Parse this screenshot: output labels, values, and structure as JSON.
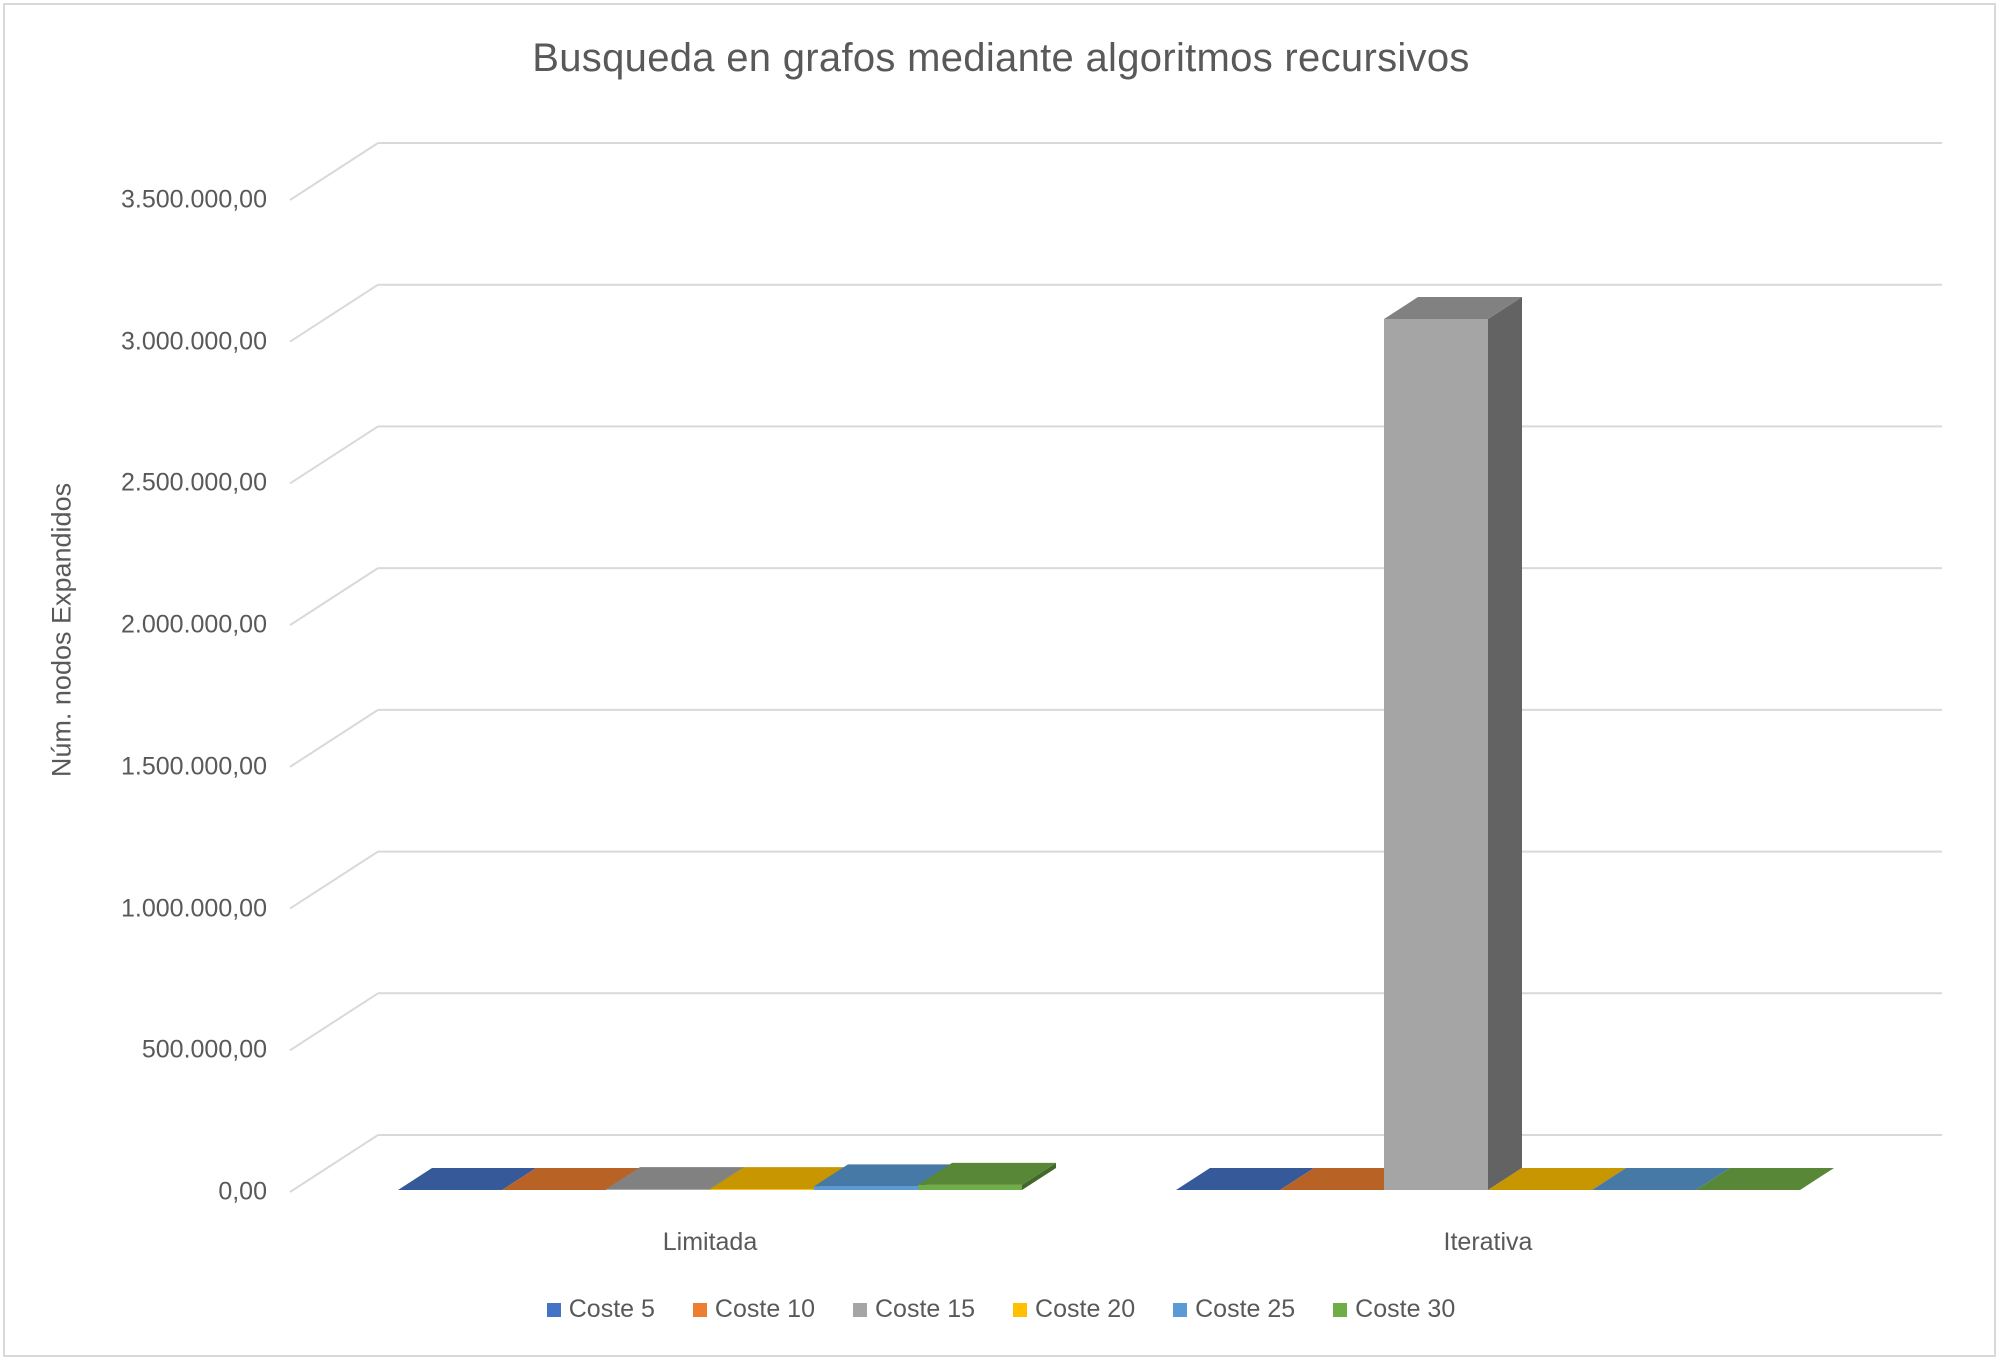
{
  "chart_data": {
    "type": "bar",
    "title": "Busqueda  en grafos mediante algoritmos recursivos",
    "xlabel": "",
    "ylabel": "Núm. nodos Expandidos",
    "ylim": [
      0,
      3500000
    ],
    "y_ticks": [
      "0,00",
      "500.000,00",
      "1.000.000,00",
      "1.500.000,00",
      "2.000.000,00",
      "2.500.000,00",
      "3.000.000,00",
      "3.500.000,00"
    ],
    "y_tick_values": [
      0,
      500000,
      1000000,
      1500000,
      2000000,
      2500000,
      3000000,
      3500000
    ],
    "categories": [
      "Limitada",
      "Iterativa"
    ],
    "series": [
      {
        "name": "Coste 5",
        "color": "#4472C4",
        "values": [
          0,
          0
        ]
      },
      {
        "name": "Coste 10",
        "color": "#ED7D31",
        "values": [
          0,
          5000
        ]
      },
      {
        "name": "Coste 15",
        "color": "#A5A5A5",
        "values": [
          10000,
          3080000
        ]
      },
      {
        "name": "Coste 20",
        "color": "#FFC000",
        "values": [
          10000,
          0
        ]
      },
      {
        "name": "Coste 25",
        "color": "#5B9BD5",
        "values": [
          20000,
          0
        ]
      },
      {
        "name": "Coste 30",
        "color": "#70AD47",
        "values": [
          25000,
          0
        ]
      }
    ],
    "grid": true,
    "legend_position": "bottom",
    "style": "3d-clustered-column"
  }
}
